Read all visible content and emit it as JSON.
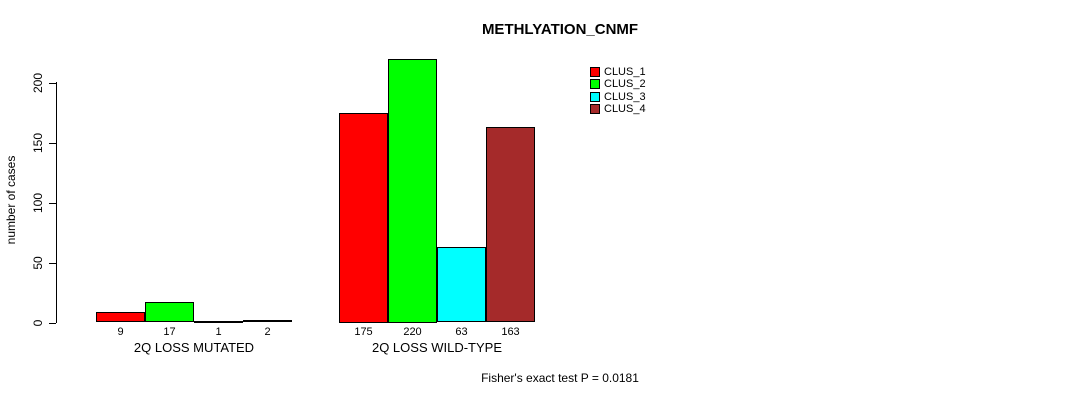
{
  "chart_data": {
    "type": "bar",
    "title": "METHLYATION_CNMF",
    "xlabel": "",
    "ylabel": "number of cases",
    "categories": [
      "2Q LOSS MUTATED",
      "2Q LOSS WILD-TYPE"
    ],
    "series": [
      {
        "name": "CLUS_1",
        "color": "#ff0000",
        "values": [
          9,
          175
        ]
      },
      {
        "name": "CLUS_2",
        "color": "#00ff00",
        "values": [
          17,
          220
        ]
      },
      {
        "name": "CLUS_3",
        "color": "#00ffff",
        "values": [
          1,
          63
        ]
      },
      {
        "name": "CLUS_4",
        "color": "#a52a2a",
        "values": [
          2,
          163
        ]
      }
    ],
    "bar_value_labels": [
      [
        "9",
        "17",
        "1",
        "2"
      ],
      [
        "175",
        "220",
        "63",
        "163"
      ]
    ],
    "yticks": [
      0,
      50,
      100,
      150,
      200
    ],
    "ylim": [
      0,
      220
    ],
    "grid": false,
    "legend_position": "top-right",
    "legend_entries": [
      "CLUS_1",
      "CLUS_2",
      "CLUS_3",
      "CLUS_4"
    ],
    "annotation": "Fisher's exact test P = 0.0181",
    "bar_border_color": "#000000",
    "axis_color": "#000000"
  }
}
